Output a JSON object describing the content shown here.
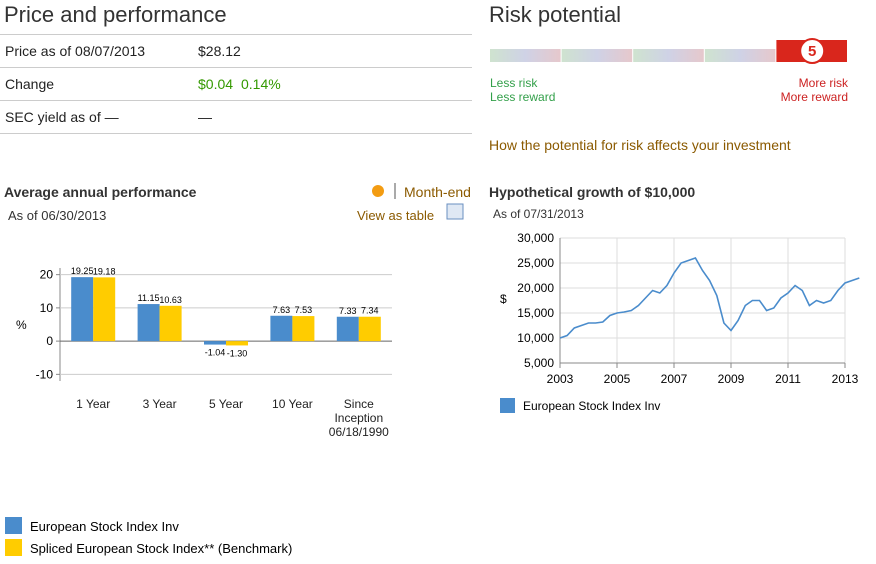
{
  "price_performance": {
    "title": "Price and performance",
    "rows": [
      [
        "Price as of 08/07/2013",
        "$28.12"
      ],
      [
        "Change",
        "$0.04",
        "0.14%"
      ],
      [
        "SEC yield as of —",
        "—"
      ]
    ]
  },
  "risk": {
    "title": "Risk potential",
    "level": 5,
    "low_labels": [
      "Less risk",
      "Less reward"
    ],
    "high_labels": [
      "More risk",
      "More reward"
    ],
    "link": "How the potential for risk affects your investment"
  },
  "chart_data": [
    {
      "type": "bar",
      "title": "Average annual performance",
      "subtitle": "As of 06/30/2013",
      "links": [
        "Month-end",
        "View as table"
      ],
      "y_label": "%",
      "categories": [
        "1 Year",
        "3 Year",
        "5 Year",
        "10 Year",
        "Since Inception 06/18/1990"
      ],
      "series": [
        {
          "name": "European Stock Index Inv",
          "color": "#4a8ccc",
          "values": [
            19.25,
            11.15,
            -1.04,
            7.63,
            7.33
          ],
          "value_labels": [
            "19.25",
            "11.15",
            "-1.04",
            "7.63",
            "7.33"
          ]
        },
        {
          "name": "Spliced European Stock Index** (Benchmark)",
          "color": "#ffcc00",
          "values": [
            19.18,
            10.63,
            -1.3,
            7.53,
            7.34
          ],
          "value_labels": [
            "19.18",
            "10.63",
            "-1.30",
            "7.53",
            "7.34"
          ]
        }
      ],
      "ylim": [
        -12,
        22
      ],
      "yticks": [
        -10,
        0,
        10,
        20
      ],
      "grid": true
    },
    {
      "type": "line",
      "title": "Hypothetical growth of $10,000",
      "subtitle": "As of 07/31/2013",
      "y_label": "$",
      "x": [
        2003,
        2003.25,
        2003.5,
        2003.75,
        2004,
        2004.25,
        2004.5,
        2004.75,
        2005,
        2005.25,
        2005.5,
        2005.75,
        2006,
        2006.25,
        2006.5,
        2006.75,
        2007,
        2007.25,
        2007.5,
        2007.75,
        2008,
        2008.25,
        2008.5,
        2008.75,
        2009,
        2009.25,
        2009.5,
        2009.75,
        2010,
        2010.25,
        2010.5,
        2010.75,
        2011,
        2011.25,
        2011.5,
        2011.75,
        2012,
        2012.25,
        2012.5,
        2012.75,
        2013,
        2013.25,
        2013.5
      ],
      "series": [
        {
          "name": "European Stock Index Inv",
          "color": "#4a8ccc",
          "values": [
            10000,
            10500,
            12000,
            12500,
            13000,
            13000,
            13200,
            14500,
            15000,
            15200,
            15500,
            16500,
            18000,
            19500,
            19000,
            20500,
            23000,
            25000,
            25500,
            26000,
            23500,
            21500,
            18500,
            13000,
            11500,
            13500,
            16500,
            17500,
            17500,
            15500,
            16000,
            18000,
            19000,
            20500,
            19500,
            16500,
            17500,
            17000,
            17500,
            19500,
            21000,
            21500,
            22000
          ]
        }
      ],
      "xlim": [
        2003,
        2013
      ],
      "xticks": [
        2003,
        2005,
        2007,
        2009,
        2011,
        2013
      ],
      "ylim": [
        5000,
        30000
      ],
      "yticks": [
        {
          "value": 5000,
          "label": "5,000"
        },
        {
          "value": 10000,
          "label": "10,000"
        },
        {
          "value": 15000,
          "label": "15,000"
        },
        {
          "value": 20000,
          "label": "20,000"
        },
        {
          "value": 25000,
          "label": "25,000"
        },
        {
          "value": 30000,
          "label": "30,000"
        }
      ],
      "grid": true
    }
  ]
}
